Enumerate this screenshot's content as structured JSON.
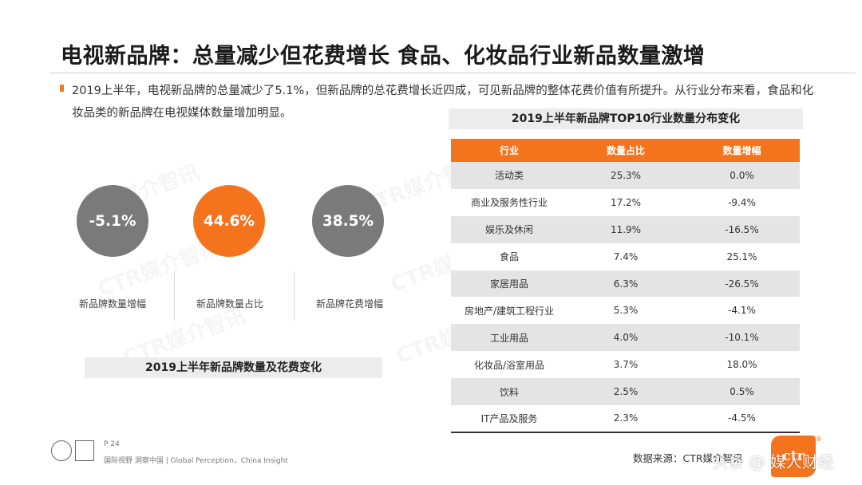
{
  "title": "电视新品牌：总量减少但花费增长 食品、化妆品行业新品数量激增",
  "summary": "2019上半年，电视新品牌的总量减少了5.1%，但新品牌的总花费增长近四成，可见新品牌的整体花费价值有所提升。从行业分布来看，食品和化妆品类的新品牌在电视媒体数量增加明显。",
  "colors": {
    "accent": "#f4741e",
    "grey_circle": "#7a7a7a"
  },
  "kpis": [
    {
      "value": "-5.1%",
      "label": "新品牌数量增幅",
      "color": "#7a7a7a"
    },
    {
      "value": "44.6%",
      "label": "新品牌数量占比",
      "color": "#f6731e"
    },
    {
      "value": "38.5%",
      "label": "新品牌花费增幅",
      "color": "#7a7a7a"
    }
  ],
  "left_caption": "2019上半年新品牌数量及花费变化",
  "table": {
    "caption": "2019上半年新品牌TOP10行业数量分布变化",
    "headers": [
      "行业",
      "数量占比",
      "数量增幅"
    ],
    "rows": [
      [
        "活动类",
        "25.3%",
        "0.0%"
      ],
      [
        "商业及服务性行业",
        "17.2%",
        "-9.4%"
      ],
      [
        "娱乐及休闲",
        "11.9%",
        "-16.5%"
      ],
      [
        "食品",
        "7.4%",
        "25.1%"
      ],
      [
        "家居用品",
        "6.3%",
        "-26.5%"
      ],
      [
        "房地产/建筑工程行业",
        "5.3%",
        "-4.1%"
      ],
      [
        "工业用品",
        "4.0%",
        "-10.1%"
      ],
      [
        "化妆品/浴室用品",
        "3.7%",
        "18.0%"
      ],
      [
        "饮料",
        "2.5%",
        "0.5%"
      ],
      [
        "IT产品及服务",
        "2.3%",
        "-4.5%"
      ]
    ]
  },
  "watermark": "CTR媒介智讯",
  "footer": {
    "page": "P 24",
    "slogan": "国际视野 洞察中国 | Global Perception，China Insight"
  },
  "source": "数据来源：CTR媒介智讯",
  "brand": {
    "logo_text": "ctr",
    "reg": "®",
    "overlay": "头条 @ 媒人财经"
  }
}
